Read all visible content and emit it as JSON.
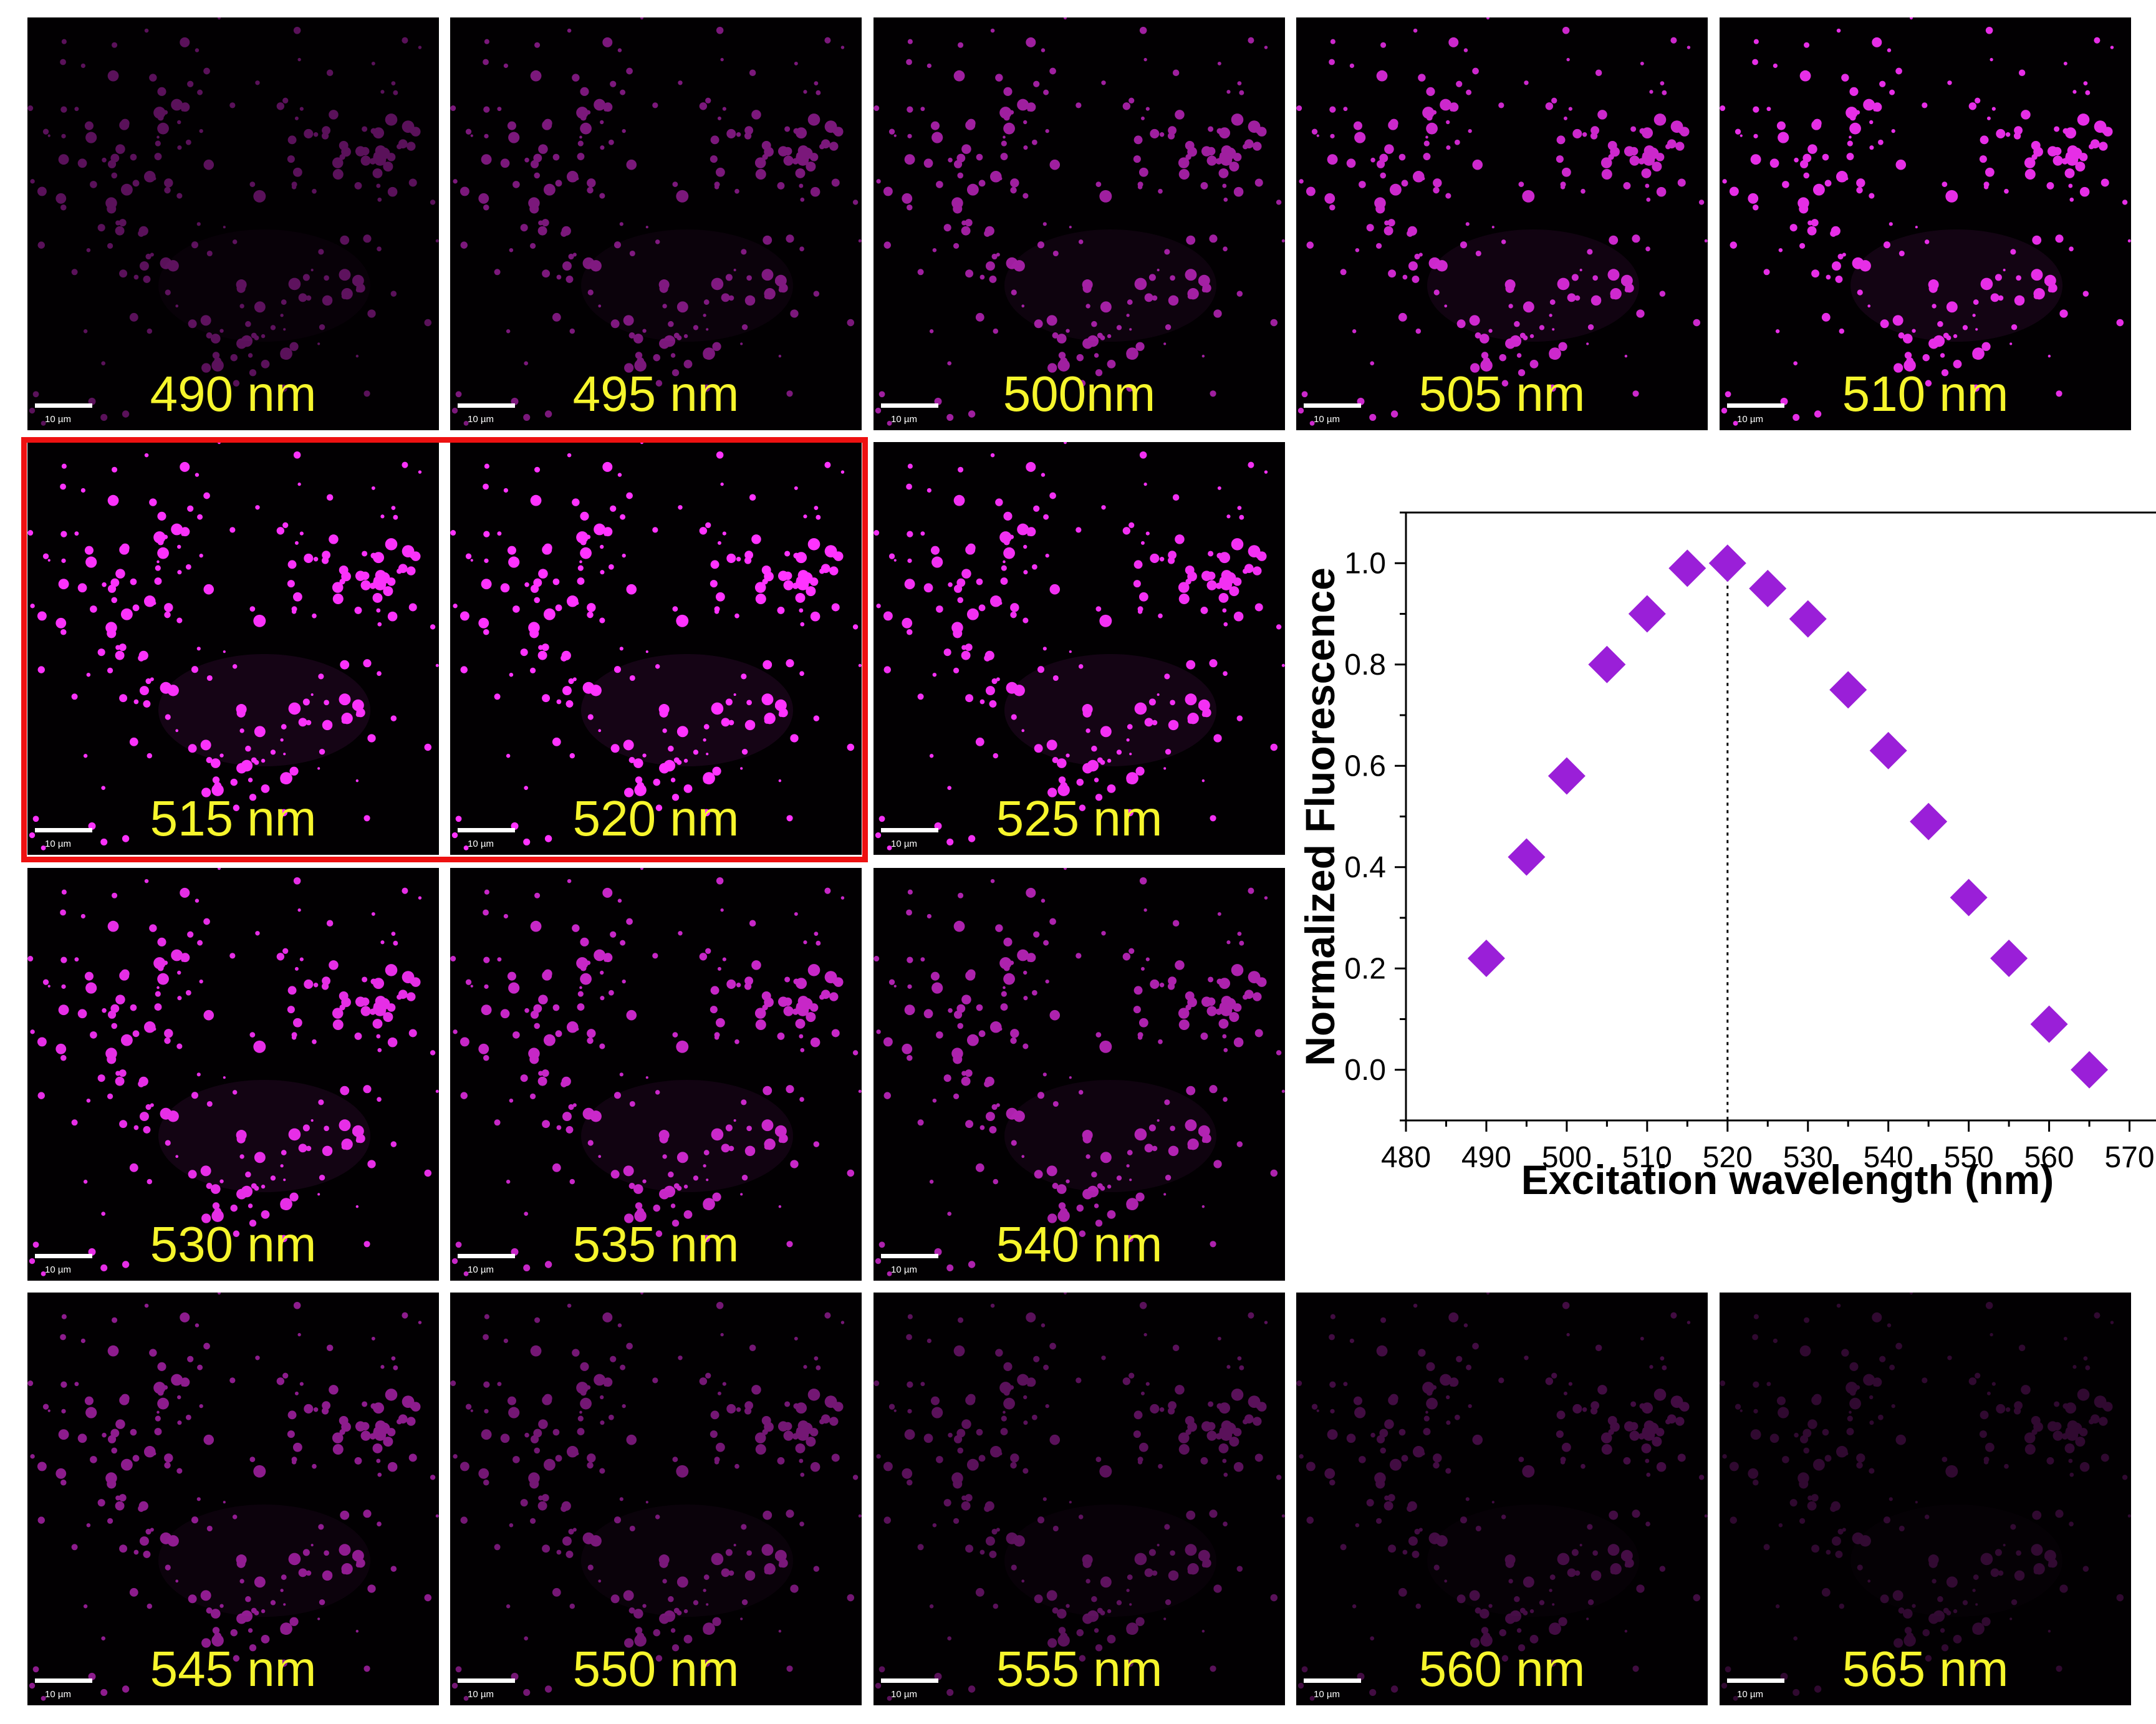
{
  "scale_bar_label": "10 µm",
  "colors": {
    "label": "#f6f52c",
    "marker": "#9a1fd8",
    "highlight": "#ee1111",
    "cells": "#ff33ff"
  },
  "panels": [
    {
      "label": "490 nm",
      "brightness": 0.35
    },
    {
      "label": "495 nm",
      "brightness": 0.48
    },
    {
      "label": "500nm",
      "brightness": 0.62
    },
    {
      "label": "505 nm",
      "brightness": 0.8
    },
    {
      "label": "510 nm",
      "brightness": 0.9
    },
    {
      "label": "515 nm",
      "brightness": 0.98
    },
    {
      "label": "520 nm",
      "brightness": 1.0
    },
    {
      "label": "525 nm",
      "brightness": 0.95
    },
    {
      "label": "530 nm",
      "brightness": 0.9
    },
    {
      "label": "535 nm",
      "brightness": 0.78
    },
    {
      "label": "540 nm",
      "brightness": 0.68
    },
    {
      "label": "545 nm",
      "brightness": 0.55
    },
    {
      "label": "550 nm",
      "brightness": 0.45
    },
    {
      "label": "555 nm",
      "brightness": 0.35
    },
    {
      "label": "560 nm",
      "brightness": 0.25
    },
    {
      "label": "565 nm",
      "brightness": 0.18
    }
  ],
  "chart_data": {
    "type": "scatter",
    "title": "",
    "xlabel": "Excitation wavelength (nm)",
    "ylabel": "Normalized Fluorescence",
    "xlim": [
      480,
      575
    ],
    "ylim": [
      -0.1,
      1.1
    ],
    "xticks": [
      480,
      490,
      500,
      510,
      520,
      530,
      540,
      550,
      560,
      570
    ],
    "yticks": [
      0.0,
      0.2,
      0.4,
      0.6,
      0.8,
      1.0
    ],
    "marker": "diamond",
    "reference_line_x": 520,
    "series": [
      {
        "name": "Normalized Fluorescence",
        "x": [
          490,
          495,
          500,
          505,
          510,
          515,
          520,
          525,
          530,
          535,
          540,
          545,
          550,
          555,
          560,
          565
        ],
        "y": [
          0.22,
          0.42,
          0.58,
          0.8,
          0.9,
          0.99,
          1.0,
          0.95,
          0.89,
          0.75,
          0.63,
          0.49,
          0.34,
          0.22,
          0.09,
          0.0
        ]
      }
    ]
  }
}
